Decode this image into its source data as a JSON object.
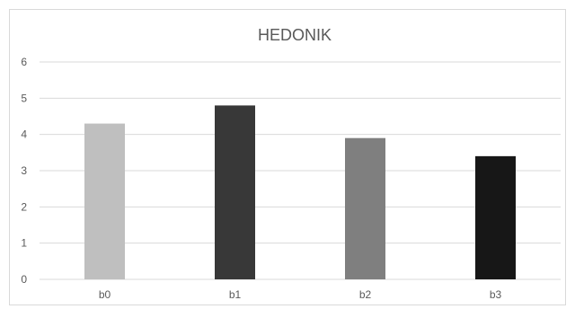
{
  "chart_data": {
    "type": "bar",
    "title": "HEDONIK",
    "categories": [
      "b0",
      "b1",
      "b2",
      "b3"
    ],
    "values": [
      4.3,
      4.8,
      3.9,
      3.4
    ],
    "colors": [
      "#bfbfbf",
      "#383838",
      "#7f7f7f",
      "#171717"
    ],
    "y_ticks": [
      "0",
      "1",
      "2",
      "3",
      "4",
      "5",
      "6"
    ],
    "ylim": [
      0,
      6
    ],
    "xlabel": "",
    "ylabel": "",
    "grid": true,
    "legend": "none"
  }
}
